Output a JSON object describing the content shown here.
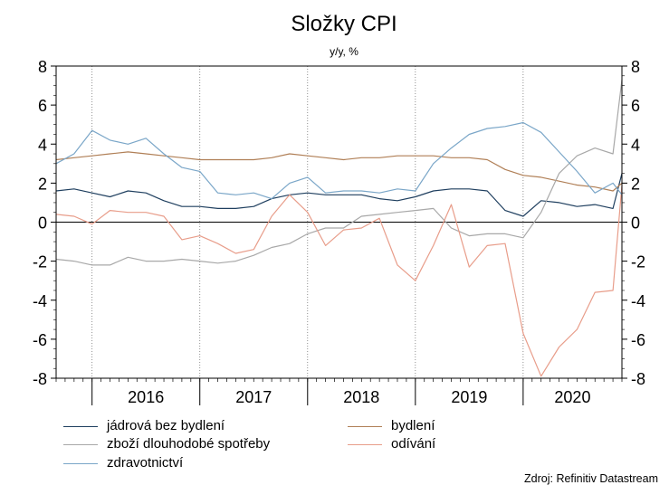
{
  "chart_data": {
    "type": "line",
    "title": "Složky CPI",
    "subtitle": "y/y, %",
    "source": "Zdroj: Refinitiv Datastream",
    "x_start": "2015-09",
    "x_end": "2020-12",
    "x_tick_labels": [
      "2016",
      "2017",
      "2018",
      "2019",
      "2020"
    ],
    "ylim": [
      -8,
      8
    ],
    "yticks": [
      -8,
      -6,
      -4,
      -2,
      0,
      2,
      4,
      6,
      8
    ],
    "ytick_labels": [
      "-8",
      "-6",
      "-4",
      "-2",
      "0",
      "2",
      "4",
      "6",
      "8"
    ],
    "grid": true,
    "legend_position": "bottom",
    "series": [
      {
        "name": "jádrová bez bydlení",
        "color": "#1f3f5f",
        "x": [
          "2015-09",
          "2015-11",
          "2016-01",
          "2016-03",
          "2016-05",
          "2016-07",
          "2016-09",
          "2016-11",
          "2017-01",
          "2017-03",
          "2017-05",
          "2017-07",
          "2017-09",
          "2017-11",
          "2018-01",
          "2018-03",
          "2018-05",
          "2018-07",
          "2018-09",
          "2018-11",
          "2019-01",
          "2019-03",
          "2019-05",
          "2019-07",
          "2019-09",
          "2019-11",
          "2020-01",
          "2020-03",
          "2020-05",
          "2020-07",
          "2020-09",
          "2020-11",
          "2020-12"
        ],
        "values": [
          1.6,
          1.7,
          1.5,
          1.3,
          1.6,
          1.5,
          1.1,
          0.8,
          0.8,
          0.7,
          0.7,
          0.8,
          1.2,
          1.4,
          1.5,
          1.4,
          1.4,
          1.4,
          1.2,
          1.1,
          1.3,
          1.6,
          1.7,
          1.7,
          1.6,
          0.6,
          0.3,
          1.1,
          1.0,
          0.8,
          0.9,
          0.7,
          2.5
        ]
      },
      {
        "name": "bydlení",
        "color": "#b07f56",
        "x": [
          "2015-09",
          "2015-11",
          "2016-01",
          "2016-03",
          "2016-05",
          "2016-07",
          "2016-09",
          "2016-11",
          "2017-01",
          "2017-03",
          "2017-05",
          "2017-07",
          "2017-09",
          "2017-11",
          "2018-01",
          "2018-03",
          "2018-05",
          "2018-07",
          "2018-09",
          "2018-11",
          "2019-01",
          "2019-03",
          "2019-05",
          "2019-07",
          "2019-09",
          "2019-11",
          "2020-01",
          "2020-03",
          "2020-05",
          "2020-07",
          "2020-09",
          "2020-11",
          "2020-12"
        ],
        "values": [
          3.2,
          3.3,
          3.4,
          3.5,
          3.6,
          3.5,
          3.4,
          3.3,
          3.2,
          3.2,
          3.2,
          3.2,
          3.3,
          3.5,
          3.4,
          3.3,
          3.2,
          3.3,
          3.3,
          3.4,
          3.4,
          3.4,
          3.3,
          3.3,
          3.2,
          2.7,
          2.4,
          2.3,
          2.1,
          1.9,
          1.8,
          1.6,
          2.0
        ]
      },
      {
        "name": "zboží dlouhodobé spotřeby",
        "color": "#a8a8a8",
        "x": [
          "2015-09",
          "2015-11",
          "2016-01",
          "2016-03",
          "2016-05",
          "2016-07",
          "2016-09",
          "2016-11",
          "2017-01",
          "2017-03",
          "2017-05",
          "2017-07",
          "2017-09",
          "2017-11",
          "2018-01",
          "2018-03",
          "2018-05",
          "2018-07",
          "2018-09",
          "2018-11",
          "2019-01",
          "2019-03",
          "2019-05",
          "2019-07",
          "2019-09",
          "2019-11",
          "2020-01",
          "2020-03",
          "2020-05",
          "2020-07",
          "2020-09",
          "2020-11",
          "2020-12"
        ],
        "values": [
          -1.9,
          -2.0,
          -2.2,
          -2.2,
          -1.8,
          -2.0,
          -2.0,
          -1.9,
          -2.0,
          -2.1,
          -2.0,
          -1.7,
          -1.3,
          -1.1,
          -0.6,
          -0.3,
          -0.3,
          0.3,
          0.4,
          0.5,
          0.6,
          0.7,
          -0.3,
          -0.7,
          -0.6,
          -0.6,
          -0.8,
          0.5,
          2.5,
          3.4,
          3.8,
          3.5,
          7.3
        ]
      },
      {
        "name": "odívání",
        "color": "#e89d8a",
        "x": [
          "2015-09",
          "2015-11",
          "2016-01",
          "2016-03",
          "2016-05",
          "2016-07",
          "2016-09",
          "2016-11",
          "2017-01",
          "2017-03",
          "2017-05",
          "2017-07",
          "2017-09",
          "2017-11",
          "2018-01",
          "2018-03",
          "2018-05",
          "2018-07",
          "2018-09",
          "2018-11",
          "2019-01",
          "2019-03",
          "2019-05",
          "2019-07",
          "2019-09",
          "2019-11",
          "2020-01",
          "2020-03",
          "2020-05",
          "2020-07",
          "2020-09",
          "2020-11",
          "2020-12"
        ],
        "values": [
          0.4,
          0.3,
          -0.1,
          0.6,
          0.5,
          0.5,
          0.3,
          -0.9,
          -0.7,
          -1.1,
          -1.6,
          -1.4,
          0.3,
          1.4,
          0.5,
          -1.2,
          -0.4,
          -0.3,
          0.2,
          -2.2,
          -3.0,
          -1.2,
          0.9,
          -2.3,
          -1.2,
          -1.1,
          -5.7,
          -7.9,
          -6.4,
          -5.5,
          -3.6,
          -3.5,
          1.9
        ]
      },
      {
        "name": "zdravotnictví",
        "color": "#7aa6c8",
        "x": [
          "2015-09",
          "2015-11",
          "2016-01",
          "2016-03",
          "2016-05",
          "2016-07",
          "2016-09",
          "2016-11",
          "2017-01",
          "2017-03",
          "2017-05",
          "2017-07",
          "2017-09",
          "2017-11",
          "2018-01",
          "2018-03",
          "2018-05",
          "2018-07",
          "2018-09",
          "2018-11",
          "2019-01",
          "2019-03",
          "2019-05",
          "2019-07",
          "2019-09",
          "2019-11",
          "2020-01",
          "2020-03",
          "2020-05",
          "2020-07",
          "2020-09",
          "2020-11",
          "2020-12"
        ],
        "values": [
          3.0,
          3.5,
          4.7,
          4.2,
          4.0,
          4.3,
          3.5,
          2.8,
          2.6,
          1.5,
          1.4,
          1.5,
          1.2,
          2.0,
          2.3,
          1.5,
          1.6,
          1.6,
          1.5,
          1.7,
          1.6,
          3.0,
          3.8,
          4.5,
          4.8,
          4.9,
          5.1,
          4.6,
          3.6,
          2.6,
          1.5,
          2.0,
          1.4
        ]
      }
    ]
  }
}
